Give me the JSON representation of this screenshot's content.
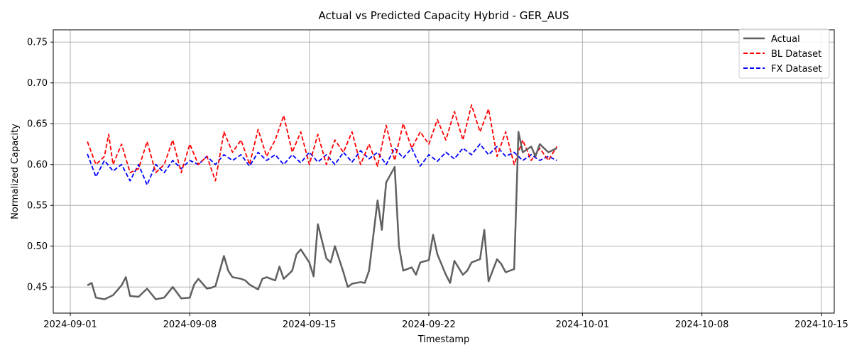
{
  "chart_data": {
    "type": "line",
    "title": "Actual vs Predicted Capacity Hybrid - GER_AUS",
    "xlabel": "Timestamp",
    "ylabel": "Normalized Capacity",
    "x_type": "date",
    "xlim": [
      "2024-08-31T00:00",
      "2024-10-15T18:00"
    ],
    "ylim": [
      0.418,
      0.765
    ],
    "x_ticks": [
      "2024-09-01",
      "2024-09-08",
      "2024-09-15",
      "2024-09-22",
      "2024-10-01",
      "2024-10-08",
      "2024-10-15"
    ],
    "y_ticks": [
      0.45,
      0.5,
      0.55,
      0.6,
      0.65,
      0.7,
      0.75
    ],
    "y_tick_labels": [
      "0.45",
      "0.50",
      "0.55",
      "0.60",
      "0.65",
      "0.70",
      "0.75"
    ],
    "grid": true,
    "legend_position": "top-right",
    "series": [
      {
        "name": "Actual",
        "color": "#606060",
        "style": "solid",
        "points": [
          [
            "2024-09-02T00:00",
            0.452
          ],
          [
            "2024-09-02T06:00",
            0.455
          ],
          [
            "2024-09-02T12:00",
            0.437
          ],
          [
            "2024-09-03T00:00",
            0.435
          ],
          [
            "2024-09-03T12:00",
            0.44
          ],
          [
            "2024-09-04T00:00",
            0.452
          ],
          [
            "2024-09-04T06:00",
            0.462
          ],
          [
            "2024-09-04T12:00",
            0.439
          ],
          [
            "2024-09-05T00:00",
            0.438
          ],
          [
            "2024-09-05T12:00",
            0.448
          ],
          [
            "2024-09-06T00:00",
            0.435
          ],
          [
            "2024-09-06T12:00",
            0.437
          ],
          [
            "2024-09-07T00:00",
            0.45
          ],
          [
            "2024-09-07T12:00",
            0.436
          ],
          [
            "2024-09-08T00:00",
            0.437
          ],
          [
            "2024-09-08T06:00",
            0.453
          ],
          [
            "2024-09-08T12:00",
            0.46
          ],
          [
            "2024-09-09T00:00",
            0.448
          ],
          [
            "2024-09-09T06:00",
            0.449
          ],
          [
            "2024-09-09T12:00",
            0.451
          ],
          [
            "2024-09-10T00:00",
            0.488
          ],
          [
            "2024-09-10T06:00",
            0.47
          ],
          [
            "2024-09-10T12:00",
            0.462
          ],
          [
            "2024-09-11T00:00",
            0.46
          ],
          [
            "2024-09-11T06:00",
            0.458
          ],
          [
            "2024-09-11T12:00",
            0.453
          ],
          [
            "2024-09-12T00:00",
            0.447
          ],
          [
            "2024-09-12T06:00",
            0.46
          ],
          [
            "2024-09-12T12:00",
            0.462
          ],
          [
            "2024-09-13T00:00",
            0.458
          ],
          [
            "2024-09-13T06:00",
            0.475
          ],
          [
            "2024-09-13T12:00",
            0.46
          ],
          [
            "2024-09-14T00:00",
            0.47
          ],
          [
            "2024-09-14T06:00",
            0.49
          ],
          [
            "2024-09-14T12:00",
            0.496
          ],
          [
            "2024-09-15T00:00",
            0.48
          ],
          [
            "2024-09-15T06:00",
            0.463
          ],
          [
            "2024-09-15T12:00",
            0.527
          ],
          [
            "2024-09-16T00:00",
            0.485
          ],
          [
            "2024-09-16T06:00",
            0.48
          ],
          [
            "2024-09-16T12:00",
            0.5
          ],
          [
            "2024-09-17T00:00",
            0.468
          ],
          [
            "2024-09-17T06:00",
            0.45
          ],
          [
            "2024-09-17T12:00",
            0.454
          ],
          [
            "2024-09-18T00:00",
            0.456
          ],
          [
            "2024-09-18T06:00",
            0.455
          ],
          [
            "2024-09-18T12:00",
            0.47
          ],
          [
            "2024-09-19T00:00",
            0.556
          ],
          [
            "2024-09-19T06:00",
            0.52
          ],
          [
            "2024-09-19T12:00",
            0.578
          ],
          [
            "2024-09-20T00:00",
            0.597
          ],
          [
            "2024-09-20T06:00",
            0.5
          ],
          [
            "2024-09-20T12:00",
            0.47
          ],
          [
            "2024-09-21T00:00",
            0.474
          ],
          [
            "2024-09-21T06:00",
            0.465
          ],
          [
            "2024-09-21T12:00",
            0.48
          ],
          [
            "2024-09-22T00:00",
            0.483
          ],
          [
            "2024-09-22T06:00",
            0.514
          ],
          [
            "2024-09-22T12:00",
            0.49
          ],
          [
            "2024-09-23T00:00",
            0.465
          ],
          [
            "2024-09-23T06:00",
            0.455
          ],
          [
            "2024-09-23T12:00",
            0.482
          ],
          [
            "2024-09-24T00:00",
            0.465
          ],
          [
            "2024-09-24T06:00",
            0.47
          ],
          [
            "2024-09-24T12:00",
            0.48
          ],
          [
            "2024-09-25T00:00",
            0.484
          ],
          [
            "2024-09-25T06:00",
            0.52
          ],
          [
            "2024-09-25T12:00",
            0.457
          ],
          [
            "2024-09-26T00:00",
            0.484
          ],
          [
            "2024-09-26T06:00",
            0.478
          ],
          [
            "2024-09-26T12:00",
            0.468
          ],
          [
            "2024-09-27T00:00",
            0.472
          ],
          [
            "2024-09-27T06:00",
            0.64
          ],
          [
            "2024-09-27T12:00",
            0.615
          ],
          [
            "2024-09-28T00:00",
            0.622
          ],
          [
            "2024-09-28T06:00",
            0.61
          ],
          [
            "2024-09-28T12:00",
            0.625
          ],
          [
            "2024-09-29T00:00",
            0.615
          ],
          [
            "2024-09-29T12:00",
            0.62
          ]
        ]
      },
      {
        "name": "BL Dataset",
        "color": "#ff0000",
        "style": "dashed",
        "points": [
          [
            "2024-09-02T00:00",
            0.628
          ],
          [
            "2024-09-02T12:00",
            0.6
          ],
          [
            "2024-09-03T00:00",
            0.61
          ],
          [
            "2024-09-03T06:00",
            0.637
          ],
          [
            "2024-09-03T12:00",
            0.6
          ],
          [
            "2024-09-04T00:00",
            0.625
          ],
          [
            "2024-09-04T12:00",
            0.59
          ],
          [
            "2024-09-05T00:00",
            0.595
          ],
          [
            "2024-09-05T12:00",
            0.628
          ],
          [
            "2024-09-06T00:00",
            0.59
          ],
          [
            "2024-09-06T12:00",
            0.6
          ],
          [
            "2024-09-07T00:00",
            0.63
          ],
          [
            "2024-09-07T12:00",
            0.59
          ],
          [
            "2024-09-08T00:00",
            0.625
          ],
          [
            "2024-09-08T12:00",
            0.6
          ],
          [
            "2024-09-09T00:00",
            0.61
          ],
          [
            "2024-09-09T12:00",
            0.58
          ],
          [
            "2024-09-10T00:00",
            0.64
          ],
          [
            "2024-09-10T12:00",
            0.615
          ],
          [
            "2024-09-11T00:00",
            0.63
          ],
          [
            "2024-09-11T12:00",
            0.6
          ],
          [
            "2024-09-12T00:00",
            0.643
          ],
          [
            "2024-09-12T12:00",
            0.61
          ],
          [
            "2024-09-13T00:00",
            0.63
          ],
          [
            "2024-09-13T12:00",
            0.66
          ],
          [
            "2024-09-14T00:00",
            0.615
          ],
          [
            "2024-09-14T12:00",
            0.64
          ],
          [
            "2024-09-15T00:00",
            0.6
          ],
          [
            "2024-09-15T12:00",
            0.637
          ],
          [
            "2024-09-16T00:00",
            0.6
          ],
          [
            "2024-09-16T12:00",
            0.63
          ],
          [
            "2024-09-17T00:00",
            0.615
          ],
          [
            "2024-09-17T12:00",
            0.64
          ],
          [
            "2024-09-18T00:00",
            0.6
          ],
          [
            "2024-09-18T12:00",
            0.625
          ],
          [
            "2024-09-19T00:00",
            0.598
          ],
          [
            "2024-09-19T12:00",
            0.648
          ],
          [
            "2024-09-20T00:00",
            0.605
          ],
          [
            "2024-09-20T12:00",
            0.65
          ],
          [
            "2024-09-21T00:00",
            0.62
          ],
          [
            "2024-09-21T12:00",
            0.64
          ],
          [
            "2024-09-22T00:00",
            0.625
          ],
          [
            "2024-09-22T12:00",
            0.655
          ],
          [
            "2024-09-23T00:00",
            0.63
          ],
          [
            "2024-09-23T12:00",
            0.665
          ],
          [
            "2024-09-24T00:00",
            0.63
          ],
          [
            "2024-09-24T12:00",
            0.673
          ],
          [
            "2024-09-25T00:00",
            0.64
          ],
          [
            "2024-09-25T12:00",
            0.668
          ],
          [
            "2024-09-26T00:00",
            0.61
          ],
          [
            "2024-09-26T12:00",
            0.64
          ],
          [
            "2024-09-27T00:00",
            0.6
          ],
          [
            "2024-09-27T12:00",
            0.63
          ],
          [
            "2024-09-28T00:00",
            0.605
          ],
          [
            "2024-09-28T12:00",
            0.62
          ],
          [
            "2024-09-29T00:00",
            0.605
          ],
          [
            "2024-09-29T12:00",
            0.622
          ]
        ]
      },
      {
        "name": "FX Dataset",
        "color": "#0000ff",
        "style": "dashed",
        "points": [
          [
            "2024-09-02T00:00",
            0.613
          ],
          [
            "2024-09-02T12:00",
            0.585
          ],
          [
            "2024-09-03T00:00",
            0.605
          ],
          [
            "2024-09-03T12:00",
            0.592
          ],
          [
            "2024-09-04T00:00",
            0.6
          ],
          [
            "2024-09-04T12:00",
            0.58
          ],
          [
            "2024-09-05T00:00",
            0.6
          ],
          [
            "2024-09-05T12:00",
            0.575
          ],
          [
            "2024-09-06T00:00",
            0.6
          ],
          [
            "2024-09-06T12:00",
            0.59
          ],
          [
            "2024-09-07T00:00",
            0.605
          ],
          [
            "2024-09-07T12:00",
            0.595
          ],
          [
            "2024-09-08T00:00",
            0.605
          ],
          [
            "2024-09-08T12:00",
            0.6
          ],
          [
            "2024-09-09T00:00",
            0.61
          ],
          [
            "2024-09-09T12:00",
            0.6
          ],
          [
            "2024-09-10T00:00",
            0.612
          ],
          [
            "2024-09-10T12:00",
            0.605
          ],
          [
            "2024-09-11T00:00",
            0.612
          ],
          [
            "2024-09-11T12:00",
            0.598
          ],
          [
            "2024-09-12T00:00",
            0.615
          ],
          [
            "2024-09-12T12:00",
            0.605
          ],
          [
            "2024-09-13T00:00",
            0.612
          ],
          [
            "2024-09-13T12:00",
            0.6
          ],
          [
            "2024-09-14T00:00",
            0.612
          ],
          [
            "2024-09-14T12:00",
            0.602
          ],
          [
            "2024-09-15T00:00",
            0.615
          ],
          [
            "2024-09-15T12:00",
            0.603
          ],
          [
            "2024-09-16T00:00",
            0.612
          ],
          [
            "2024-09-16T12:00",
            0.6
          ],
          [
            "2024-09-17T00:00",
            0.615
          ],
          [
            "2024-09-17T12:00",
            0.603
          ],
          [
            "2024-09-18T00:00",
            0.617
          ],
          [
            "2024-09-18T12:00",
            0.607
          ],
          [
            "2024-09-19T00:00",
            0.615
          ],
          [
            "2024-09-19T12:00",
            0.6
          ],
          [
            "2024-09-20T00:00",
            0.62
          ],
          [
            "2024-09-20T12:00",
            0.608
          ],
          [
            "2024-09-21T00:00",
            0.62
          ],
          [
            "2024-09-21T12:00",
            0.598
          ],
          [
            "2024-09-22T00:00",
            0.612
          ],
          [
            "2024-09-22T12:00",
            0.604
          ],
          [
            "2024-09-23T00:00",
            0.615
          ],
          [
            "2024-09-23T12:00",
            0.607
          ],
          [
            "2024-09-24T00:00",
            0.62
          ],
          [
            "2024-09-24T12:00",
            0.612
          ],
          [
            "2024-09-25T00:00",
            0.625
          ],
          [
            "2024-09-25T12:00",
            0.612
          ],
          [
            "2024-09-26T00:00",
            0.622
          ],
          [
            "2024-09-26T12:00",
            0.61
          ],
          [
            "2024-09-27T00:00",
            0.615
          ],
          [
            "2024-09-27T12:00",
            0.605
          ],
          [
            "2024-09-28T00:00",
            0.612
          ],
          [
            "2024-09-28T12:00",
            0.605
          ],
          [
            "2024-09-29T00:00",
            0.61
          ],
          [
            "2024-09-29T12:00",
            0.605
          ]
        ]
      }
    ]
  }
}
